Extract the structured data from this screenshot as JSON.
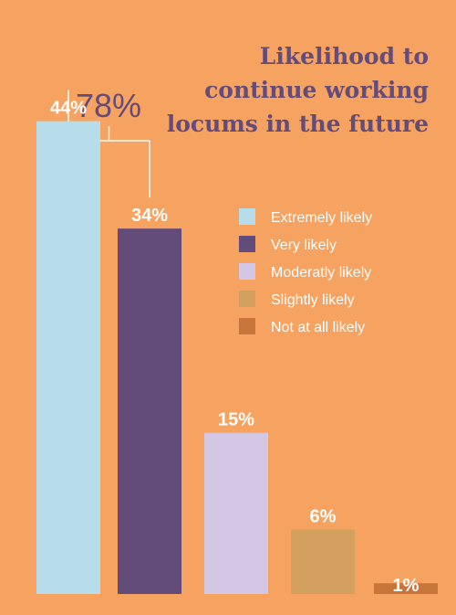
{
  "background": "#F6A260",
  "chart_data": {
    "type": "bar",
    "title_lines": [
      "Likelihood to",
      "continue working",
      "locums in the future"
    ],
    "categories": [
      "Extremely likely",
      "Very likely",
      "Moderatly likely",
      "Slightly likely",
      "Not at all likely"
    ],
    "values": [
      44,
      34,
      15,
      6,
      1
    ],
    "value_labels": [
      "44%",
      "34%",
      "15%",
      "6%",
      "1%"
    ],
    "colors": [
      "#B7DCEA",
      "#634B7A",
      "#D3C7E4",
      "#D3A060",
      "#C8753C"
    ],
    "ylim": [
      0,
      50
    ],
    "grid": false,
    "legend": {
      "placement": "right",
      "items": [
        {
          "label": "Extremely likely",
          "color": "#B7DCEA"
        },
        {
          "label": "Very likely",
          "color": "#634B7A"
        },
        {
          "label": "Moderatly likely",
          "color": "#D3C7E4"
        },
        {
          "label": "Slightly likely",
          "color": "#D3A060"
        },
        {
          "label": "Not at all likely",
          "color": "#C8753C"
        }
      ]
    },
    "annotation": {
      "label": "78%",
      "spans": [
        "Extremely likely",
        "Very likely"
      ],
      "color": "#634B7A"
    }
  }
}
